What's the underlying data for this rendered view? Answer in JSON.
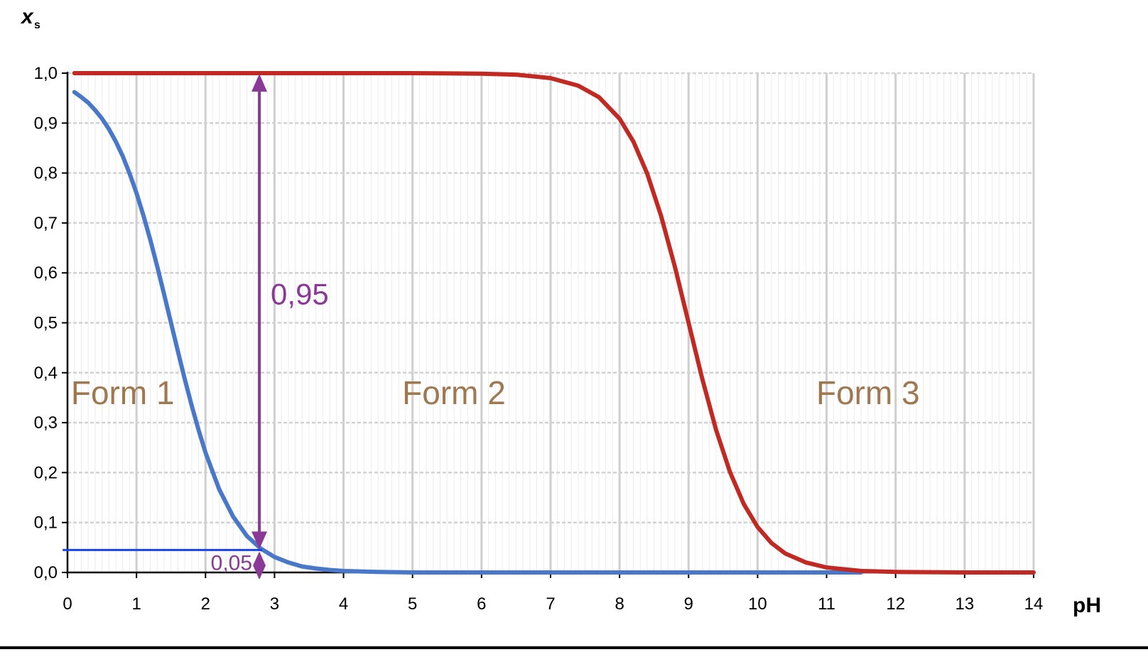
{
  "chart_data": {
    "type": "line",
    "xlabel": "pH",
    "ylabel_main": "x",
    "ylabel_sub": "s",
    "xlim": [
      0,
      14
    ],
    "ylim": [
      0,
      1
    ],
    "x_ticks": [
      "0",
      "1",
      "2",
      "3",
      "4",
      "5",
      "6",
      "7",
      "8",
      "9",
      "10",
      "11",
      "12",
      "13",
      "14"
    ],
    "y_ticks": [
      "0,0",
      "0,1",
      "0,2",
      "0,3",
      "0,4",
      "0,5",
      "0,6",
      "0,7",
      "0,8",
      "0,9",
      "1,0"
    ],
    "grid": true,
    "series": [
      {
        "color": "#4a78c8",
        "x": [
          0.1,
          0.2,
          0.3,
          0.4,
          0.5,
          0.6,
          0.7,
          0.8,
          0.9,
          1.0,
          1.1,
          1.2,
          1.3,
          1.4,
          1.5,
          1.6,
          1.7,
          1.8,
          1.9,
          2.0,
          2.2,
          2.4,
          2.6,
          2.8,
          3.0,
          3.2,
          3.4,
          3.6,
          3.8,
          4.0,
          4.5,
          5.0,
          6.0,
          7.0,
          8.0,
          9.0,
          10.0,
          11.0,
          11.5
        ],
        "y": [
          0.962,
          0.952,
          0.941,
          0.926,
          0.909,
          0.888,
          0.863,
          0.834,
          0.799,
          0.76,
          0.715,
          0.666,
          0.613,
          0.557,
          0.5,
          0.443,
          0.387,
          0.334,
          0.285,
          0.24,
          0.166,
          0.112,
          0.073,
          0.048,
          0.031,
          0.02,
          0.012,
          0.008,
          0.005,
          0.003,
          0.001,
          0.0,
          0.0,
          0.0,
          0.0,
          0.0,
          0.0,
          0.0,
          0.0
        ]
      },
      {
        "color": "#c02a22",
        "x": [
          0.1,
          1.0,
          2.0,
          3.0,
          4.0,
          5.0,
          6.0,
          6.5,
          7.0,
          7.4,
          7.7,
          8.0,
          8.2,
          8.4,
          8.6,
          8.8,
          9.0,
          9.2,
          9.4,
          9.6,
          9.8,
          10.0,
          10.2,
          10.4,
          10.7,
          11.0,
          11.5,
          12.0,
          13.0,
          14.0
        ],
        "y": [
          1.0,
          1.0,
          1.0,
          1.0,
          1.0,
          1.0,
          0.999,
          0.997,
          0.99,
          0.975,
          0.952,
          0.909,
          0.863,
          0.799,
          0.715,
          0.613,
          0.5,
          0.387,
          0.285,
          0.201,
          0.137,
          0.091,
          0.059,
          0.038,
          0.02,
          0.01,
          0.003,
          0.001,
          0.0,
          0.0
        ]
      }
    ],
    "annotations": {
      "region_labels": [
        {
          "text": "Form 1",
          "x": 0.8
        },
        {
          "text": "Form 2",
          "x": 5.6
        },
        {
          "text": "Form 3",
          "x": 11.6
        }
      ],
      "region_label_y": 0.36,
      "region_color": "#a07850",
      "marker_x": 2.78,
      "level_y": 0.045,
      "big_arrow_label": "0,95",
      "big_arrow_label_y": 0.56,
      "small_arrow_label": "0,05",
      "arrow_color": "#8a3a96",
      "level_line_color": "#1a44e8"
    }
  }
}
